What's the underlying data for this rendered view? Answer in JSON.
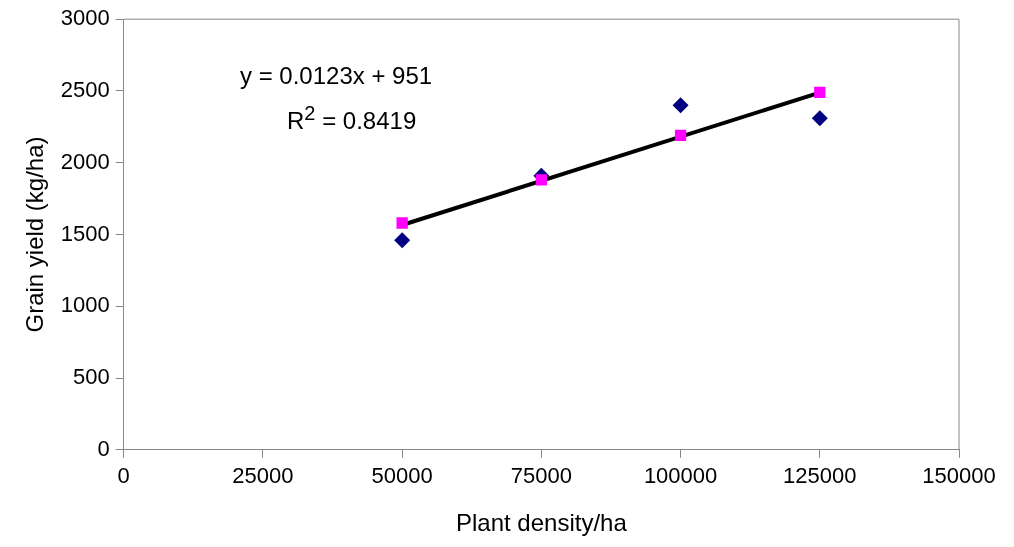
{
  "chart_data": {
    "type": "scatter",
    "xlabel": "Plant density/ha",
    "ylabel": "Grain yield (kg/ha)",
    "xlim": [
      0,
      150000
    ],
    "xticks": [
      0,
      25000,
      50000,
      75000,
      100000,
      125000,
      150000
    ],
    "ylim": [
      0,
      3000
    ],
    "yticks": [
      0,
      500,
      1000,
      1500,
      2000,
      2500,
      3000
    ],
    "grid": false,
    "legend": false,
    "x": [
      50000,
      75000,
      100000,
      125000
    ],
    "series": [
      {
        "color": "#000080",
        "marker": "diamond",
        "values": [
          1460,
          1910,
          2400,
          2310
        ]
      },
      {
        "color": "#ff00ff",
        "marker": "square",
        "values": [
          1580,
          1880,
          2190,
          2490
        ]
      },
      {
        "type": "line",
        "color": "#000000",
        "marker": "none",
        "x": [
          50000,
          125000
        ],
        "values": [
          1566,
          2489
        ]
      }
    ],
    "annotations": [
      "y = 0.0123x + 951",
      "R$^{2}$ = 0.8419"
    ]
  }
}
